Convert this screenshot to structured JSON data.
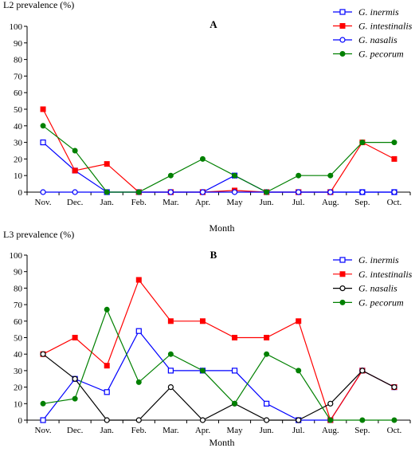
{
  "chart_data": [
    {
      "type": "line",
      "title": "A",
      "ylabel": "L2 prevalence (%)",
      "xlabel": "Month",
      "ylim": [
        0,
        100
      ],
      "yticks": [
        0,
        10,
        20,
        30,
        40,
        50,
        60,
        70,
        80,
        90,
        100
      ],
      "categories": [
        "Nov.",
        "Dec.",
        "Jan.",
        "Feb.",
        "Mar.",
        "Apr.",
        "May",
        "Jun.",
        "Jul.",
        "Aug.",
        "Sep.",
        "Oct."
      ],
      "legend_position": "top-right",
      "series": [
        {
          "name": "G. inermis",
          "color": "#0000ff",
          "marker": "open-square",
          "values": [
            30,
            13,
            0,
            0,
            0,
            0,
            10,
            0,
            0,
            0,
            0,
            0
          ]
        },
        {
          "name": "G. intestinalis",
          "color": "#ff0000",
          "marker": "filled-square",
          "values": [
            50,
            13,
            17,
            0,
            0,
            0,
            1,
            0,
            0,
            0,
            30,
            20
          ]
        },
        {
          "name": "G. nasalis",
          "color": "#0000ff",
          "marker": "open-circle",
          "values": [
            0,
            0,
            0,
            0,
            0,
            0,
            0,
            0,
            0,
            0,
            0,
            0
          ]
        },
        {
          "name": "G. pecorum",
          "color": "#008000",
          "marker": "filled-circle",
          "values": [
            40,
            25,
            0,
            0,
            10,
            20,
            10,
            0,
            10,
            10,
            30,
            30
          ]
        }
      ]
    },
    {
      "type": "line",
      "title": "B",
      "ylabel": "L3 prevalence (%)",
      "xlabel": "Month",
      "ylim": [
        0,
        100
      ],
      "yticks": [
        0,
        10,
        20,
        30,
        40,
        50,
        60,
        70,
        80,
        90,
        100
      ],
      "categories": [
        "Nov.",
        "Dec.",
        "Jan.",
        "Feb.",
        "Mar.",
        "Apr.",
        "May",
        "Jun.",
        "Jul.",
        "Aug.",
        "Sep.",
        "Oct."
      ],
      "legend_position": "top-right",
      "series": [
        {
          "name": "G. inermis",
          "color": "#0000ff",
          "marker": "open-square",
          "values": [
            0,
            25,
            17,
            54,
            30,
            30,
            30,
            10,
            0,
            0,
            30,
            20
          ]
        },
        {
          "name": "G. intestinalis",
          "color": "#ff0000",
          "marker": "filled-square",
          "values": [
            40,
            50,
            33,
            85,
            60,
            60,
            50,
            50,
            60,
            0,
            30,
            20
          ]
        },
        {
          "name": "G. nasalis",
          "color": "#000000",
          "marker": "open-circle",
          "values": [
            40,
            25,
            0,
            0,
            20,
            0,
            10,
            0,
            0,
            10,
            30,
            20
          ]
        },
        {
          "name": "G. pecorum",
          "color": "#008000",
          "marker": "filled-circle",
          "values": [
            10,
            13,
            67,
            23,
            40,
            30,
            10,
            40,
            30,
            0,
            0,
            0
          ]
        }
      ]
    }
  ]
}
